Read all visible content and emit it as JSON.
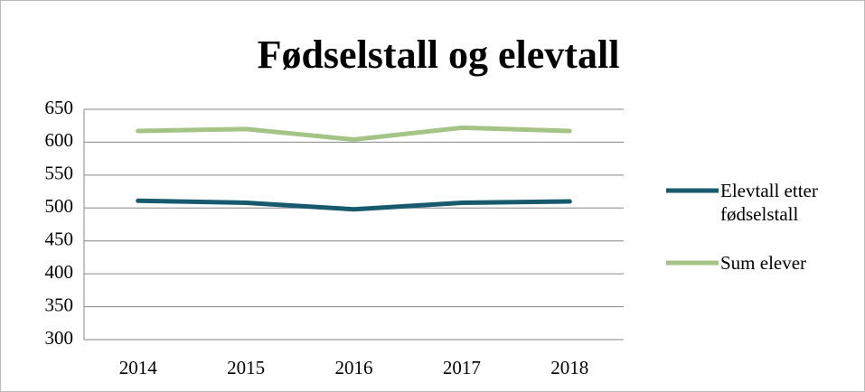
{
  "chart_data": {
    "type": "line",
    "title": "Fødselstall og elevtall",
    "categories": [
      "2014",
      "2015",
      "2016",
      "2017",
      "2018"
    ],
    "series": [
      {
        "name": "Elevtall etter fødselstall",
        "color": "#175a6e",
        "values": [
          511,
          508,
          498,
          508,
          510
        ]
      },
      {
        "name": "Sum elever",
        "color": "#a4c486",
        "values": [
          617,
          620,
          604,
          622,
          617
        ]
      }
    ],
    "ylim": [
      300,
      650
    ],
    "yticks": [
      300,
      350,
      400,
      450,
      500,
      550,
      600,
      650
    ],
    "grid": true,
    "legend": "right"
  }
}
